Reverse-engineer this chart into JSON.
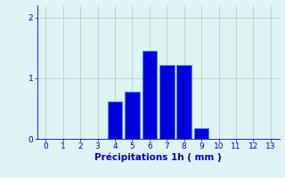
{
  "categories": [
    0,
    1,
    2,
    3,
    4,
    5,
    6,
    7,
    8,
    9,
    10,
    11,
    12,
    13
  ],
  "values": [
    0,
    0,
    0,
    0,
    0.62,
    0.78,
    1.45,
    1.22,
    1.22,
    0.18,
    0,
    0,
    0,
    0
  ],
  "bar_color": "#0000dd",
  "bar_edge_color": "#4488ff",
  "background_color": "#dff4f4",
  "grid_color": "#aabbbb",
  "xlabel": "Précipitations 1h ( mm )",
  "yticks": [
    0,
    1,
    2
  ],
  "xticks": [
    0,
    1,
    2,
    3,
    4,
    5,
    6,
    7,
    8,
    9,
    10,
    11,
    12,
    13
  ],
  "ylim": [
    0,
    2.2
  ],
  "xlim": [
    -0.5,
    13.5
  ],
  "tick_color": "#0000bb",
  "label_color": "#0000bb",
  "label_fontsize": 7.5,
  "tick_fontsize": 6.5,
  "bar_width": 0.85
}
